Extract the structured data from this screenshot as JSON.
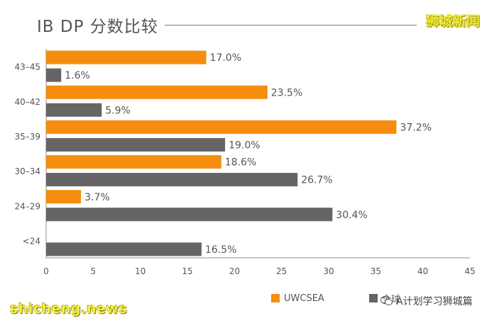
{
  "watermarks": {
    "top_right": "狮城新闻",
    "bottom_left": "shicheng.news",
    "bottom_right": "A计划学习狮城篇"
  },
  "colors": {
    "uwcsea": "#f68d0e",
    "global": "#666464",
    "axis": "#8c8c8c",
    "label": "#555555"
  },
  "chart_data": {
    "type": "bar",
    "orientation": "horizontal",
    "title": "IB DP 分数比较",
    "categories": [
      "43–45",
      "40–42",
      "35–39",
      "30–34",
      "24–29",
      "<24"
    ],
    "series": [
      {
        "name": "UWCSEA",
        "values": [
          17.0,
          23.5,
          37.2,
          18.6,
          3.7,
          null
        ],
        "labels": [
          "17.0%",
          "23.5%",
          "37.2%",
          "18.6%",
          "3.7%",
          ""
        ]
      },
      {
        "name": "全球",
        "values": [
          1.6,
          5.9,
          19.0,
          26.7,
          30.4,
          16.5
        ],
        "labels": [
          "1.6%",
          "5.9%",
          "19.0%",
          "26.7%",
          "30.4%",
          "16.5%"
        ]
      }
    ],
    "xticks": [
      "0",
      "5",
      "10",
      "15",
      "20",
      "25",
      "30",
      "35",
      "40",
      "45"
    ],
    "xlim": [
      0,
      45
    ],
    "grid": false,
    "legend_position": "bottom-right"
  }
}
